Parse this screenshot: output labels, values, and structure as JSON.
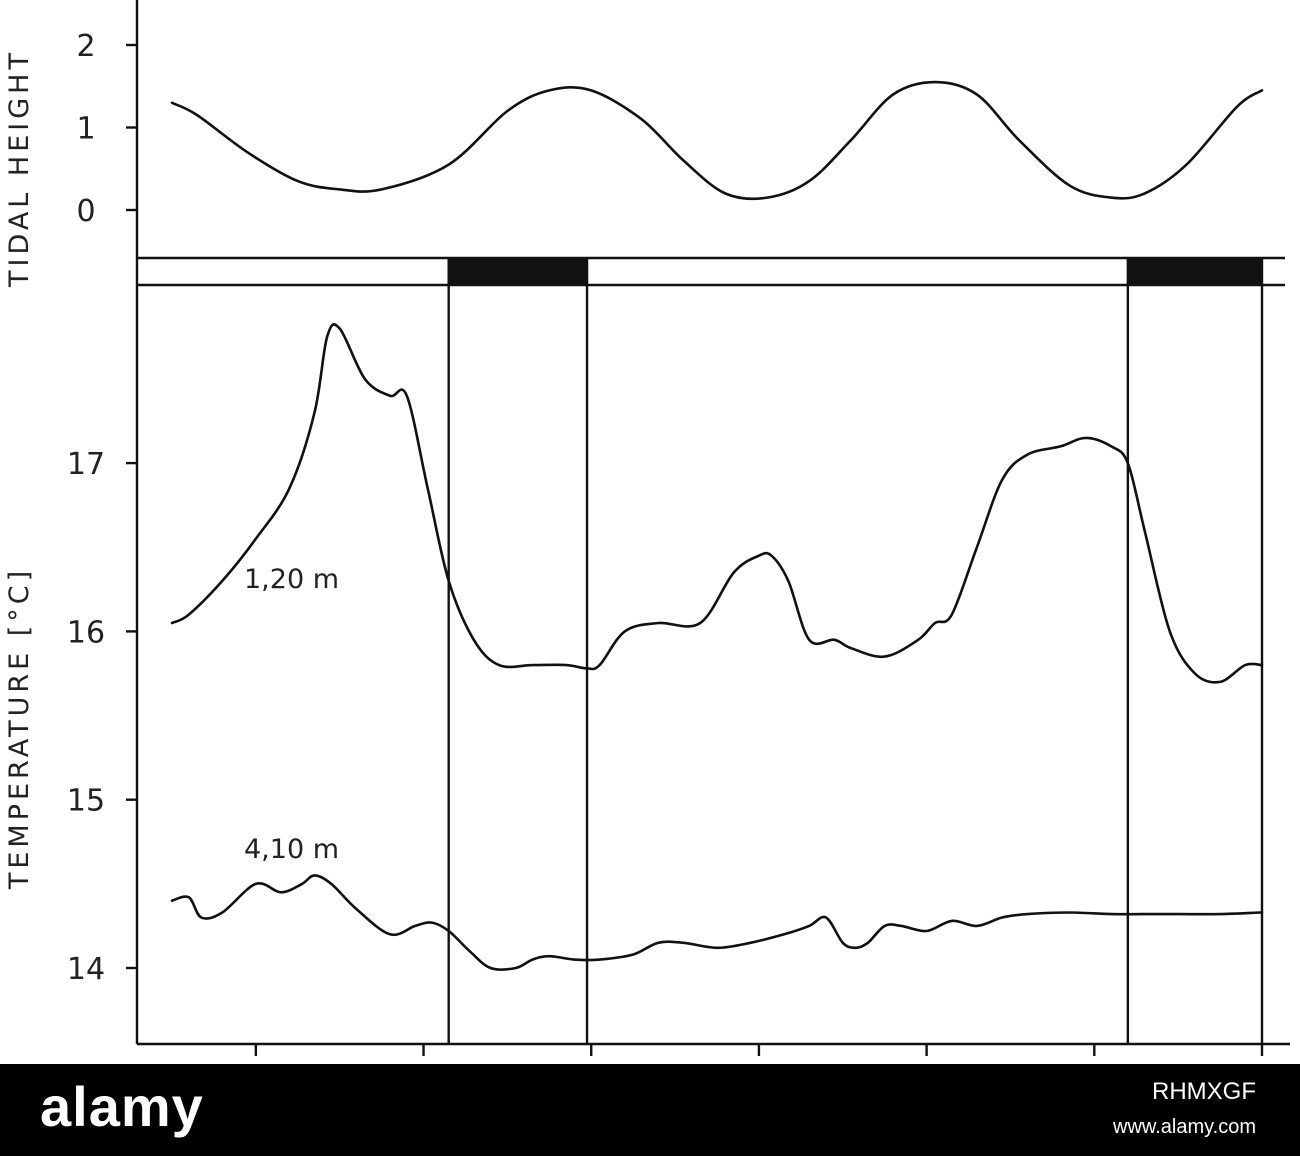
{
  "chart_data": [
    {
      "type": "line",
      "title": "",
      "ylabel": "TIDAL HEIGHT",
      "ylim": [
        0,
        2
      ],
      "yticks": [
        0,
        1,
        2
      ],
      "ytick_labels": [
        "0",
        "1",
        "2"
      ],
      "grid": false,
      "series": [
        {
          "x": [
            0,
            0.3,
            0.9,
            1.5,
            2,
            2.5,
            3.3,
            4.0,
            4.5,
            5.0,
            5.6,
            6.1,
            6.6,
            7.1,
            7.6,
            8.1,
            8.6,
            9.1,
            9.6,
            10.1,
            10.7,
            11.2,
            11.6,
            12.1,
            12.7,
            13.0
          ],
          "y": [
            1.3,
            1.15,
            0.7,
            0.35,
            0.25,
            0.25,
            0.55,
            1.2,
            1.45,
            1.45,
            1.1,
            0.6,
            0.2,
            0.15,
            0.35,
            0.85,
            1.4,
            1.55,
            1.4,
            0.85,
            0.3,
            0.15,
            0.2,
            0.55,
            1.25,
            1.45
          ]
        }
      ]
    },
    {
      "type": "line",
      "title": "",
      "ylabel": "TEMPERATURE [°C]",
      "ylim": [
        13.7,
        17.9
      ],
      "yticks": [
        14,
        15,
        16,
        17
      ],
      "ytick_labels": [
        "14",
        "15",
        "16",
        "17"
      ],
      "grid": false,
      "dark_periods": [
        [
          3.3,
          4.95
        ],
        [
          11.4,
          13.0
        ]
      ],
      "series": [
        {
          "name": "1,20 m",
          "x": [
            0,
            0.2,
            0.6,
            1.0,
            1.4,
            1.7,
            1.85,
            2.0,
            2.3,
            2.6,
            2.8,
            3.05,
            3.3,
            3.6,
            3.9,
            4.3,
            4.7,
            4.95,
            5.1,
            5.4,
            5.8,
            6.3,
            6.7,
            7.0,
            7.15,
            7.35,
            7.6,
            7.9,
            8.1,
            8.5,
            8.9,
            9.1,
            9.3,
            9.6,
            9.9,
            10.2,
            10.6,
            10.9,
            11.2,
            11.4,
            11.6,
            11.9,
            12.2,
            12.5,
            12.8,
            13.0
          ],
          "y": [
            16.05,
            16.1,
            16.3,
            16.55,
            16.85,
            17.3,
            17.75,
            17.8,
            17.5,
            17.4,
            17.4,
            16.85,
            16.3,
            15.95,
            15.8,
            15.8,
            15.8,
            15.78,
            15.8,
            16.0,
            16.05,
            16.05,
            16.35,
            16.45,
            16.45,
            16.3,
            15.95,
            15.95,
            15.9,
            15.85,
            15.95,
            16.05,
            16.1,
            16.5,
            16.9,
            17.05,
            17.1,
            17.15,
            17.1,
            17.0,
            16.6,
            16.0,
            15.75,
            15.7,
            15.8,
            15.8
          ]
        },
        {
          "name": "4,10 m",
          "x": [
            0,
            0.2,
            0.35,
            0.6,
            1.0,
            1.3,
            1.55,
            1.7,
            1.9,
            2.2,
            2.6,
            2.9,
            3.1,
            3.3,
            3.55,
            3.8,
            4.1,
            4.3,
            4.5,
            4.8,
            5.1,
            5.5,
            5.8,
            6.1,
            6.5,
            6.9,
            7.3,
            7.6,
            7.8,
            8.0,
            8.15,
            8.3,
            8.5,
            8.7,
            9.0,
            9.3,
            9.6,
            9.9,
            10.2,
            10.7,
            11.2,
            11.6,
            12.0,
            12.5,
            13.0
          ],
          "y": [
            14.4,
            14.42,
            14.3,
            14.33,
            14.5,
            14.45,
            14.5,
            14.55,
            14.5,
            14.35,
            14.2,
            14.25,
            14.27,
            14.22,
            14.1,
            14.0,
            14.0,
            14.05,
            14.07,
            14.05,
            14.05,
            14.08,
            14.15,
            14.15,
            14.12,
            14.15,
            14.2,
            14.25,
            14.3,
            14.15,
            14.12,
            14.15,
            14.25,
            14.25,
            14.22,
            14.28,
            14.25,
            14.3,
            14.32,
            14.33,
            14.32,
            14.32,
            14.32,
            14.32,
            14.33
          ]
        }
      ]
    }
  ],
  "watermark": {
    "logo": "alamy",
    "image_id": "RHMXGF",
    "url": "www.alamy.com"
  }
}
